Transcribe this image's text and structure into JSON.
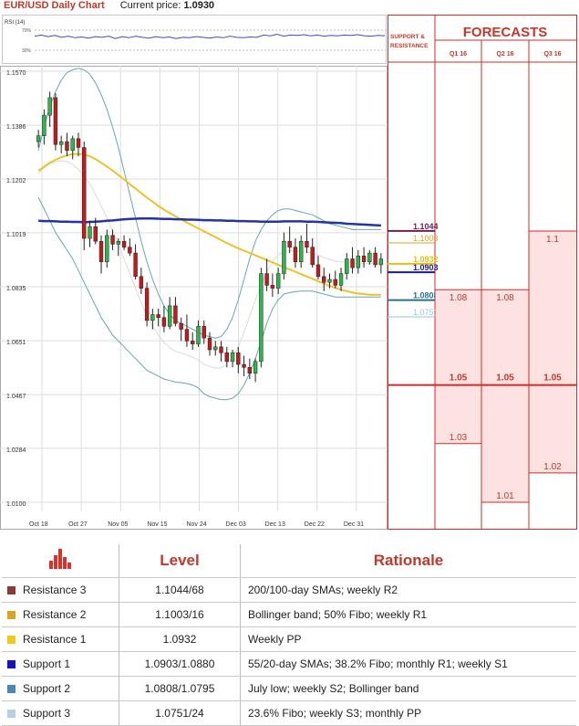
{
  "header": {
    "title": "EUR/USD Daily Chart",
    "price_label": "Current price:",
    "price_value": "1.0930"
  },
  "rsi": {
    "label": "RSI (14)",
    "level_high": "70%",
    "level_low": "30%",
    "values": [
      58,
      61,
      57,
      60,
      55,
      58,
      54,
      56,
      53,
      57,
      55,
      58,
      52,
      57,
      54,
      58,
      55,
      53,
      57,
      54,
      56,
      52,
      55,
      54,
      57,
      55,
      53,
      56,
      54,
      58,
      55,
      54,
      56,
      55,
      61,
      59,
      63,
      58,
      61,
      60,
      62,
      59,
      61,
      58,
      60,
      59,
      61,
      60,
      62,
      59,
      58,
      60,
      59
    ]
  },
  "panel": {
    "support_header": "SUPPORT & RESISTANCE",
    "forecasts_header": "FORECASTS",
    "quarters": [
      "Q1 16",
      "Q2 16",
      "Q3 16"
    ],
    "levels": [
      {
        "label": "1.1044",
        "value": 1.1044,
        "color": "#6b2157",
        "bold": true
      },
      {
        "label": "1.1003",
        "value": 1.1003,
        "color": "#d8a227",
        "bold": false
      },
      {
        "label": "1.0932",
        "value": 1.0932,
        "color": "#e5bf14",
        "bold": true
      },
      {
        "label": "1.0903",
        "value": 1.0903,
        "color": "#1a1aa6",
        "bold": true
      },
      {
        "label": "1.0808",
        "value": 1.0808,
        "color": "#2e6f8f",
        "bold": true
      },
      {
        "label": "1.0751",
        "value": 1.0751,
        "color": "#8fc9d8",
        "bold": false
      }
    ],
    "forecasts": [
      {
        "quarter": "Q1 16",
        "high": "1.08",
        "high_value": 1.08,
        "median": "1.05",
        "median_value": 1.05,
        "low": "1.03",
        "low_value": 1.03
      },
      {
        "quarter": "Q2 16",
        "high": "1.08",
        "high_value": 1.08,
        "median": "1.05",
        "median_value": 1.05,
        "low": "1.01",
        "low_value": 1.01
      },
      {
        "quarter": "Q3 16",
        "high": "1.1",
        "high_value": 1.1,
        "median": "1.05",
        "median_value": 1.05,
        "low": "1.02",
        "low_value": 1.02
      }
    ]
  },
  "chart_data": {
    "type": "candlestick",
    "title": "EUR/USD Daily Chart",
    "ylim": [
      1.01,
      1.157
    ],
    "y_ticks": [
      "1.1570",
      "1.1386",
      "1.1202",
      "1.1019",
      "1.0835",
      "1.0651",
      "1.0467",
      "1.0284",
      "1.0100"
    ],
    "x_ticks": [
      "Oct 18",
      "Oct 27",
      "Nov 05",
      "Nov 15",
      "Nov 24",
      "Dec 03",
      "Dec 13",
      "Dec 22",
      "Dec 31"
    ],
    "candles": [
      [
        1.133,
        1.137,
        1.131,
        1.135
      ],
      [
        1.135,
        1.144,
        1.132,
        1.142
      ],
      [
        1.142,
        1.15,
        1.138,
        1.148
      ],
      [
        1.148,
        1.1495,
        1.13,
        1.132
      ],
      [
        1.132,
        1.135,
        1.129,
        1.133
      ],
      [
        1.133,
        1.136,
        1.128,
        1.13
      ],
      [
        1.13,
        1.135,
        1.127,
        1.134
      ],
      [
        1.134,
        1.136,
        1.128,
        1.131
      ],
      [
        1.131,
        1.133,
        1.096,
        1.1
      ],
      [
        1.1,
        1.106,
        1.097,
        1.104
      ],
      [
        1.104,
        1.107,
        1.098,
        1.099
      ],
      [
        1.099,
        1.101,
        1.088,
        1.092
      ],
      [
        1.092,
        1.103,
        1.09,
        1.101
      ],
      [
        1.101,
        1.103,
        1.096,
        1.098
      ],
      [
        1.098,
        1.1,
        1.094,
        1.099
      ],
      [
        1.099,
        1.101,
        1.096,
        1.097
      ],
      [
        1.097,
        1.1,
        1.094,
        1.095
      ],
      [
        1.095,
        1.098,
        1.086,
        1.087
      ],
      [
        1.087,
        1.09,
        1.081,
        1.083
      ],
      [
        1.083,
        1.085,
        1.07,
        1.072
      ],
      [
        1.072,
        1.076,
        1.069,
        1.074
      ],
      [
        1.074,
        1.076,
        1.07,
        1.073
      ],
      [
        1.073,
        1.077,
        1.068,
        1.07
      ],
      [
        1.07,
        1.08,
        1.069,
        1.077
      ],
      [
        1.077,
        1.08,
        1.07,
        1.071
      ],
      [
        1.071,
        1.073,
        1.065,
        1.069
      ],
      [
        1.069,
        1.074,
        1.063,
        1.065
      ],
      [
        1.065,
        1.068,
        1.062,
        1.064
      ],
      [
        1.064,
        1.072,
        1.063,
        1.07
      ],
      [
        1.07,
        1.072,
        1.064,
        1.066
      ],
      [
        1.066,
        1.068,
        1.06,
        1.062
      ],
      [
        1.062,
        1.065,
        1.06,
        1.063
      ],
      [
        1.063,
        1.065,
        1.058,
        1.061
      ],
      [
        1.061,
        1.063,
        1.056,
        1.058
      ],
      [
        1.058,
        1.062,
        1.056,
        1.061
      ],
      [
        1.061,
        1.063,
        1.054,
        1.057
      ],
      [
        1.057,
        1.06,
        1.053,
        1.056
      ],
      [
        1.056,
        1.059,
        1.052,
        1.054
      ],
      [
        1.054,
        1.059,
        1.051,
        1.058
      ],
      [
        1.058,
        1.09,
        1.056,
        1.088
      ],
      [
        1.088,
        1.093,
        1.082,
        1.084
      ],
      [
        1.084,
        1.088,
        1.08,
        1.083
      ],
      [
        1.083,
        1.09,
        1.081,
        1.088
      ],
      [
        1.088,
        1.102,
        1.086,
        1.099
      ],
      [
        1.099,
        1.104,
        1.095,
        1.097
      ],
      [
        1.097,
        1.1,
        1.09,
        1.092
      ],
      [
        1.092,
        1.101,
        1.09,
        1.099
      ],
      [
        1.099,
        1.105,
        1.095,
        1.097
      ],
      [
        1.097,
        1.1,
        1.09,
        1.091
      ],
      [
        1.091,
        1.094,
        1.086,
        1.087
      ],
      [
        1.087,
        1.09,
        1.082,
        1.085
      ],
      [
        1.085,
        1.088,
        1.083,
        1.086
      ],
      [
        1.086,
        1.089,
        1.083,
        1.084
      ],
      [
        1.084,
        1.09,
        1.082,
        1.088
      ],
      [
        1.088,
        1.095,
        1.086,
        1.093
      ],
      [
        1.093,
        1.097,
        1.088,
        1.09
      ],
      [
        1.09,
        1.096,
        1.088,
        1.094
      ],
      [
        1.094,
        1.097,
        1.09,
        1.092
      ],
      [
        1.092,
        1.096,
        1.091,
        1.095
      ],
      [
        1.095,
        1.097,
        1.09,
        1.091
      ],
      [
        1.091,
        1.095,
        1.088,
        1.093
      ]
    ],
    "sma_200": [
      1.106,
      1.1059,
      1.1059,
      1.1058,
      1.1057,
      1.1057,
      1.1056,
      1.1056,
      1.1055,
      1.1056,
      1.1057,
      1.1058,
      1.106,
      1.1061,
      1.1063,
      1.1065,
      1.1066,
      1.1067,
      1.1068,
      1.1068,
      1.1068,
      1.1067,
      1.1066,
      1.1066,
      1.1065,
      1.1065,
      1.1064,
      1.1064,
      1.1063,
      1.1062,
      1.1062,
      1.1061,
      1.1061,
      1.106,
      1.106,
      1.1059,
      1.1059,
      1.1058,
      1.1058,
      1.1057,
      1.1057,
      1.1057,
      1.1057,
      1.1058,
      1.1058,
      1.1058,
      1.1058,
      1.1057,
      1.1057,
      1.1056,
      1.1055,
      1.1054,
      1.1053,
      1.1052,
      1.105,
      1.1049,
      1.1048,
      1.1047,
      1.1046,
      1.1045,
      1.1044
    ],
    "sma_100": [
      1.123,
      1.1245,
      1.1258,
      1.1268,
      1.1277,
      1.1283,
      1.1287,
      1.1288,
      1.1286,
      1.128,
      1.127,
      1.1258,
      1.1245,
      1.1231,
      1.1216,
      1.1201,
      1.1185,
      1.117,
      1.1154,
      1.1139,
      1.1125,
      1.1111,
      1.1098,
      1.1086,
      1.1075,
      1.1064,
      1.1054,
      1.1044,
      1.1034,
      1.1024,
      1.1014,
      1.1004,
      1.0994,
      1.0984,
      1.0975,
      1.0966,
      1.0958,
      1.095,
      1.0942,
      1.0934,
      1.0926,
      1.0918,
      1.091,
      1.0902,
      1.0894,
      1.0886,
      1.0878,
      1.087,
      1.0862,
      1.0854,
      1.0846,
      1.0838,
      1.0831,
      1.0825,
      1.082,
      1.0815,
      1.0812,
      1.081,
      1.0808,
      1.0808,
      1.0808
    ],
    "bb_upper": [
      1.13,
      1.138,
      1.145,
      1.15,
      1.154,
      1.1565,
      1.1575,
      1.158,
      1.1575,
      1.156,
      1.153,
      1.149,
      1.144,
      1.138,
      1.131,
      1.123,
      1.115,
      1.107,
      1.099,
      1.092,
      1.086,
      1.081,
      1.077,
      1.074,
      1.072,
      1.071,
      1.07,
      1.069,
      1.068,
      1.067,
      1.0665,
      1.066,
      1.0665,
      1.069,
      1.073,
      1.079,
      1.086,
      1.093,
      1.099,
      1.103,
      1.106,
      1.108,
      1.1095,
      1.11,
      1.11,
      1.1095,
      1.109,
      1.1085,
      1.108,
      1.107,
      1.106,
      1.105,
      1.1045,
      1.104,
      1.1035,
      1.103,
      1.103,
      1.103,
      1.103,
      1.103,
      1.103
    ],
    "bb_lower": [
      1.114,
      1.11,
      1.106,
      1.102,
      1.099,
      1.096,
      1.093,
      1.089,
      1.085,
      1.081,
      1.077,
      1.073,
      1.07,
      1.067,
      1.065,
      1.063,
      1.061,
      1.059,
      1.057,
      1.055,
      1.054,
      1.053,
      1.052,
      1.0515,
      1.051,
      1.0508,
      1.0505,
      1.05,
      1.049,
      1.047,
      1.046,
      1.0455,
      1.045,
      1.045,
      1.0455,
      1.047,
      1.05,
      1.054,
      1.059,
      1.065,
      1.071,
      1.076,
      1.079,
      1.081,
      1.0815,
      1.0818,
      1.082,
      1.082,
      1.082,
      1.0815,
      1.081,
      1.0805,
      1.08,
      1.08,
      1.08,
      1.08,
      1.08,
      1.08,
      1.08,
      1.08,
      1.08
    ],
    "bb_middle": [
      1.122,
      1.124,
      1.1255,
      1.126,
      1.1265,
      1.1262,
      1.1252,
      1.1235,
      1.1212,
      1.1185,
      1.115,
      1.111,
      1.107,
      1.1025,
      1.098,
      1.093,
      1.088,
      1.083,
      1.078,
      1.0735,
      1.07,
      1.067,
      1.0645,
      1.0628,
      1.0615,
      1.0609,
      1.0603,
      1.0595,
      1.0585,
      1.057,
      1.0563,
      1.0558,
      1.0558,
      1.057,
      1.0592,
      1.063,
      1.068,
      1.0735,
      1.079,
      1.084,
      1.0885,
      1.092,
      1.0943,
      1.0955,
      1.0958,
      1.0957,
      1.0955,
      1.0953,
      1.095,
      1.0943,
      1.0935,
      1.0928,
      1.0923,
      1.092,
      1.0918,
      1.0915,
      1.0915,
      1.0915,
      1.0915,
      1.0915,
      1.0915
    ]
  },
  "table": {
    "headers": {
      "level": "Level",
      "rationale": "Rationale"
    },
    "rows": [
      {
        "name": "Resistance 3",
        "level": "1.1044/68",
        "rationale": "200/100-day SMAs; weekly R2",
        "color": "#8b3a3a"
      },
      {
        "name": "Resistance 2",
        "level": "1.1003/16",
        "rationale": "Bollinger band; 50% Fibo; weekly R1",
        "color": "#d9a520"
      },
      {
        "name": "Resistance 1",
        "level": "1.0932",
        "rationale": "Weekly PP",
        "color": "#f2c81a"
      },
      {
        "name": "Support 1",
        "level": "1.0903/1.0880",
        "rationale": "55/20-day SMAs; 38.2% Fibo; monthly R1; weekly S1",
        "color": "#1414b8"
      },
      {
        "name": "Support 2",
        "level": "1.0808/1.0795",
        "rationale": "July low; weekly S2; Bollinger band",
        "color": "#4a86b8"
      },
      {
        "name": "Support 3",
        "level": "1.0751/24",
        "rationale": "23.6% Fibo; weekly S3; monthly PP",
        "color": "#b8cfe3"
      }
    ]
  }
}
